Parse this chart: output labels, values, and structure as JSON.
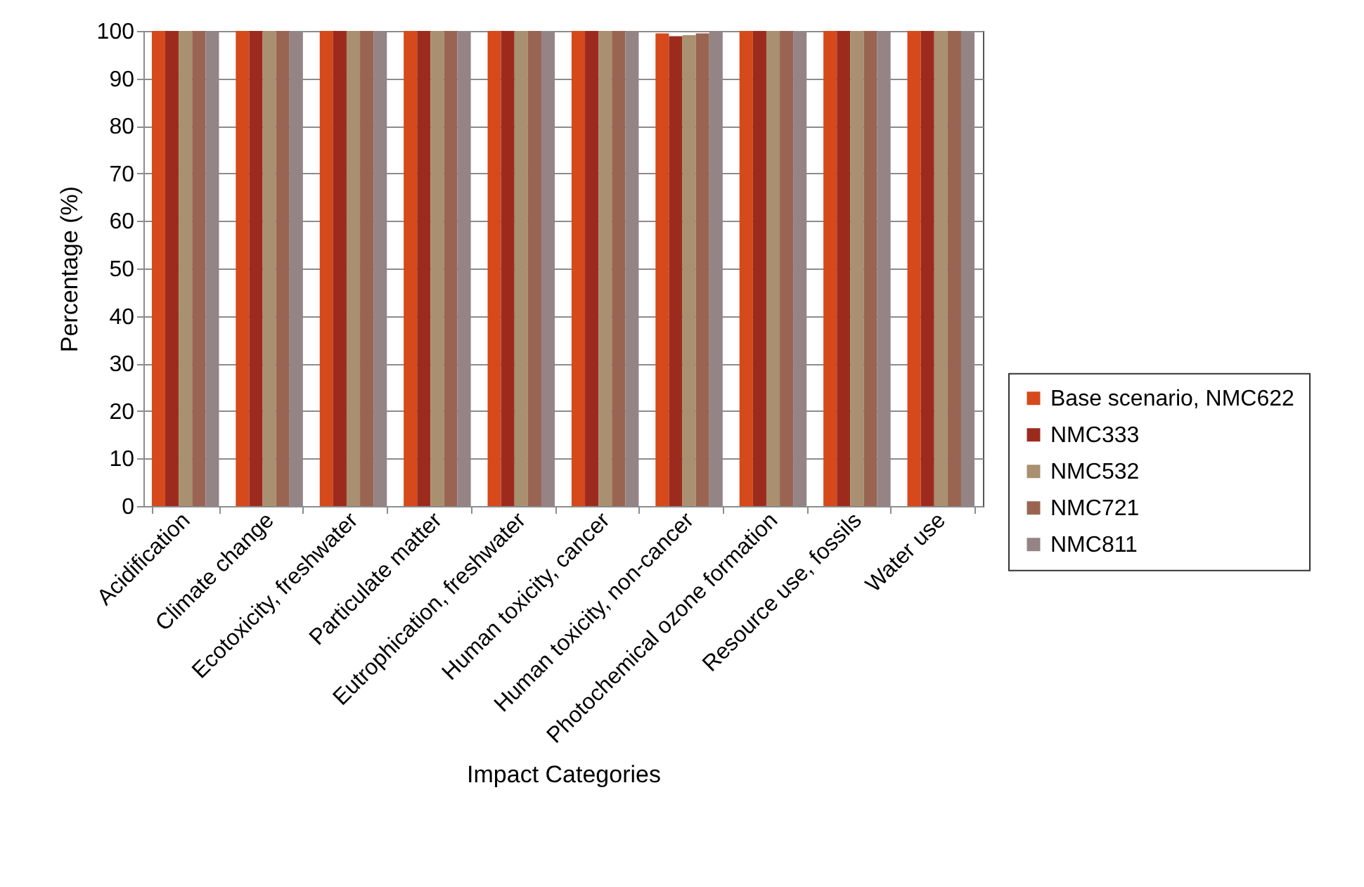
{
  "chart_data": {
    "type": "bar",
    "xlabel": "Impact Categories",
    "ylabel": "Percentage (%)",
    "categories": [
      "Acidification",
      "Climate change",
      "Ecotoxicity, freshwater",
      "Particulate matter",
      "Eutrophication, freshwater",
      "Human toxicity, cancer",
      "Human toxicity, non-cancer",
      "Photochemical ozone formation",
      "Resource use, fossils",
      "Water use"
    ],
    "series": [
      {
        "name": "Base scenario, NMC622",
        "color": "#d5491a",
        "values": [
          100,
          100,
          100,
          100,
          100,
          100,
          99.5,
          100,
          100,
          100
        ]
      },
      {
        "name": "NMC333",
        "color": "#9c2b1e",
        "values": [
          100,
          100,
          100,
          100,
          100,
          100,
          98.9,
          100,
          100,
          100
        ]
      },
      {
        "name": "NMC532",
        "color": "#a89070",
        "values": [
          100,
          100,
          100,
          100,
          100,
          100,
          99.1,
          100,
          100,
          100
        ]
      },
      {
        "name": "NMC721",
        "color": "#9a6452",
        "values": [
          100,
          100,
          100,
          100,
          100,
          100,
          99.5,
          100,
          100,
          100
        ]
      },
      {
        "name": "NMC811",
        "color": "#948486",
        "values": [
          100,
          99.7,
          100,
          99.7,
          99.7,
          100,
          100,
          99.7,
          100,
          99.7
        ]
      }
    ],
    "ylim": [
      0,
      100
    ],
    "yticks": [
      0,
      10,
      20,
      30,
      40,
      50,
      60,
      70,
      80,
      90,
      100
    ],
    "grid": "y",
    "legend": "right"
  }
}
